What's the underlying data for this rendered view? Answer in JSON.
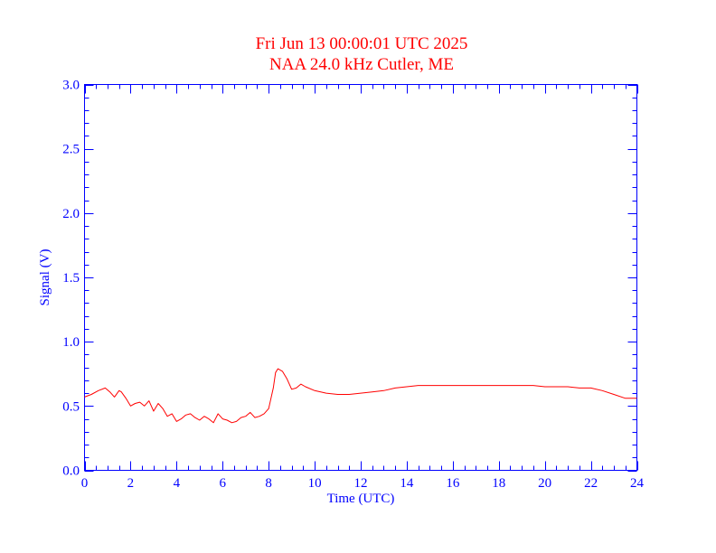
{
  "colors": {
    "background": "#ffffff",
    "axes": "#0000ff",
    "trace": "#ff0000",
    "title": "#ff0000"
  },
  "chart_data": {
    "type": "line",
    "title": "Fri Jun 13 00:00:01 UTC 2025",
    "subtitle": "NAA 24.0 kHz Cutler, ME",
    "xlabel": "Time (UTC)",
    "ylabel": "Signal (V)",
    "xlim": [
      0,
      24
    ],
    "ylim": [
      0,
      3.0
    ],
    "x_ticks": [
      0,
      2,
      4,
      6,
      8,
      10,
      12,
      14,
      16,
      18,
      20,
      22,
      24
    ],
    "x_tick_labels": [
      "0",
      "2",
      "4",
      "6",
      "8",
      "10",
      "12",
      "14",
      "16",
      "18",
      "20",
      "22",
      "24"
    ],
    "y_ticks": [
      0,
      0.5,
      1.0,
      1.5,
      2.0,
      2.5,
      3.0
    ],
    "y_tick_labels": [
      "0.0",
      "0.5",
      "1.0",
      "1.5",
      "2.0",
      "2.5",
      "3.0"
    ],
    "x_minor_step": 0.5,
    "y_minor_step": 0.1,
    "grid": false,
    "legend": "none",
    "series": [
      {
        "x": [
          0,
          0.3,
          0.6,
          0.9,
          1.1,
          1.3,
          1.5,
          1.6,
          1.8,
          2.0,
          2.2,
          2.4,
          2.6,
          2.8,
          3.0,
          3.2,
          3.4,
          3.6,
          3.8,
          4.0,
          4.2,
          4.4,
          4.6,
          4.8,
          5.0,
          5.2,
          5.4,
          5.6,
          5.8,
          6.0,
          6.2,
          6.4,
          6.6,
          6.8,
          7.0,
          7.2,
          7.4,
          7.6,
          7.8,
          8.0,
          8.2,
          8.3,
          8.4,
          8.6,
          8.8,
          9.0,
          9.2,
          9.4,
          9.6,
          10.0,
          10.5,
          11.0,
          11.5,
          12.0,
          12.5,
          13.0,
          13.5,
          14.0,
          14.5,
          15.0,
          15.5,
          16.0,
          16.5,
          17.0,
          17.5,
          18.0,
          18.5,
          19.0,
          19.5,
          20.0,
          20.5,
          21.0,
          21.5,
          22.0,
          22.5,
          23.0,
          23.5,
          24.0
        ],
        "y": [
          0.57,
          0.59,
          0.62,
          0.64,
          0.61,
          0.57,
          0.62,
          0.61,
          0.56,
          0.5,
          0.52,
          0.53,
          0.5,
          0.54,
          0.46,
          0.52,
          0.48,
          0.42,
          0.44,
          0.38,
          0.4,
          0.43,
          0.44,
          0.41,
          0.39,
          0.42,
          0.4,
          0.37,
          0.44,
          0.4,
          0.39,
          0.37,
          0.38,
          0.41,
          0.42,
          0.45,
          0.41,
          0.42,
          0.44,
          0.48,
          0.64,
          0.76,
          0.79,
          0.77,
          0.71,
          0.63,
          0.64,
          0.67,
          0.65,
          0.62,
          0.6,
          0.59,
          0.59,
          0.6,
          0.61,
          0.62,
          0.64,
          0.65,
          0.66,
          0.66,
          0.66,
          0.66,
          0.66,
          0.66,
          0.66,
          0.66,
          0.66,
          0.66,
          0.66,
          0.65,
          0.65,
          0.65,
          0.64,
          0.64,
          0.62,
          0.59,
          0.56,
          0.56
        ]
      }
    ]
  }
}
